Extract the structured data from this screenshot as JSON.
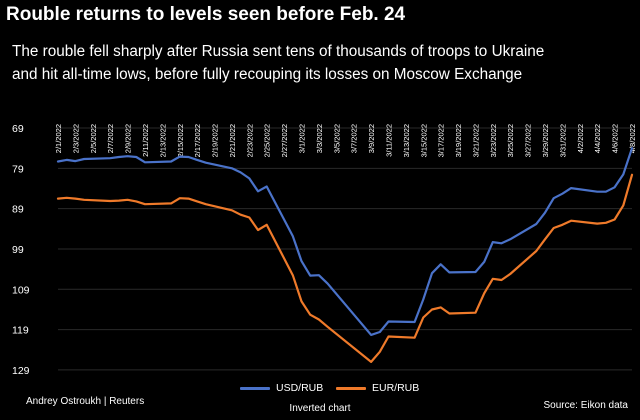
{
  "title": "Rouble returns to levels seen before Feb. 24",
  "subtitle_lines": [
    "The rouble fell sharply after Russia sent tens of thousands of troops to Ukraine",
    "and hit all-time lows, before fully recouping its losses on Moscow Exchange"
  ],
  "credit": "Andrey Ostroukh | Reuters",
  "source": "Source:  Eikon data",
  "note": "Inverted chart",
  "colors": {
    "usd": "#4a72c9",
    "eur": "#ef7a2a",
    "grid": "#2a2a2a"
  },
  "chart_data": {
    "type": "line",
    "inverted_y": true,
    "ylim": [
      69,
      131
    ],
    "yticks": [
      69,
      79,
      89,
      99,
      109,
      119,
      129
    ],
    "xticklabels": [
      "2/1/2022",
      "2/3/2022",
      "2/5/2022",
      "2/7/2022",
      "2/9/2022",
      "2/11/2022",
      "2/13/2022",
      "2/15/2022",
      "2/17/2022",
      "2/19/2022",
      "2/21/2022",
      "2/23/2022",
      "2/25/2022",
      "2/27/2022",
      "3/1/2022",
      "3/3/2022",
      "3/5/2022",
      "3/7/2022",
      "3/9/2022",
      "3/11/2022",
      "3/13/2022",
      "3/15/2022",
      "3/17/2022",
      "3/19/2022",
      "3/21/2022",
      "3/23/2022",
      "3/25/2022",
      "3/27/2022",
      "3/29/2022",
      "3/31/2022",
      "4/2/2022",
      "4/4/2022",
      "4/6/2022",
      "4/8/2022"
    ],
    "x": [
      "2022-02-01",
      "2022-02-02",
      "2022-02-03",
      "2022-02-04",
      "2022-02-07",
      "2022-02-08",
      "2022-02-09",
      "2022-02-10",
      "2022-02-11",
      "2022-02-14",
      "2022-02-15",
      "2022-02-16",
      "2022-02-17",
      "2022-02-18",
      "2022-02-21",
      "2022-02-22",
      "2022-02-23",
      "2022-02-24",
      "2022-02-25",
      "2022-02-28",
      "2022-03-01",
      "2022-03-02",
      "2022-03-03",
      "2022-03-04",
      "2022-03-09",
      "2022-03-10",
      "2022-03-11",
      "2022-03-14",
      "2022-03-15",
      "2022-03-16",
      "2022-03-17",
      "2022-03-18",
      "2022-03-21",
      "2022-03-22",
      "2022-03-23",
      "2022-03-24",
      "2022-03-25",
      "2022-03-28",
      "2022-03-29",
      "2022-03-30",
      "2022-03-31",
      "2022-04-01",
      "2022-04-04",
      "2022-04-05",
      "2022-04-06",
      "2022-04-07",
      "2022-04-08"
    ],
    "series": [
      {
        "name": "USD/RUB",
        "values": [
          77.3,
          76.9,
          77.2,
          76.7,
          76.5,
          76.2,
          76.0,
          76.2,
          77.5,
          77.3,
          76.1,
          76.2,
          76.9,
          77.6,
          79.0,
          80.0,
          81.5,
          84.7,
          83.5,
          95.8,
          102.0,
          105.6,
          105.5,
          107.6,
          120.3,
          119.6,
          117.0,
          117.1,
          111.5,
          105.0,
          102.8,
          104.8,
          104.7,
          102.2,
          97.3,
          97.6,
          96.6,
          92.8,
          90.0,
          86.4,
          85.3,
          83.9,
          84.8,
          84.8,
          83.7,
          80.5,
          74.0
        ]
      },
      {
        "name": "EUR/RUB",
        "values": [
          86.5,
          86.3,
          86.5,
          86.8,
          87.1,
          87.0,
          86.8,
          87.2,
          87.9,
          87.7,
          86.4,
          86.5,
          87.2,
          87.9,
          89.4,
          90.5,
          91.2,
          94.3,
          93.0,
          105.5,
          112.0,
          115.3,
          116.5,
          118.3,
          127.0,
          124.5,
          120.7,
          121.0,
          116.0,
          114.0,
          113.5,
          115.0,
          114.8,
          110.0,
          106.4,
          106.7,
          105.2,
          99.5,
          96.6,
          93.8,
          93.0,
          92.0,
          92.7,
          92.5,
          91.7,
          88.2,
          80.6
        ]
      }
    ]
  }
}
